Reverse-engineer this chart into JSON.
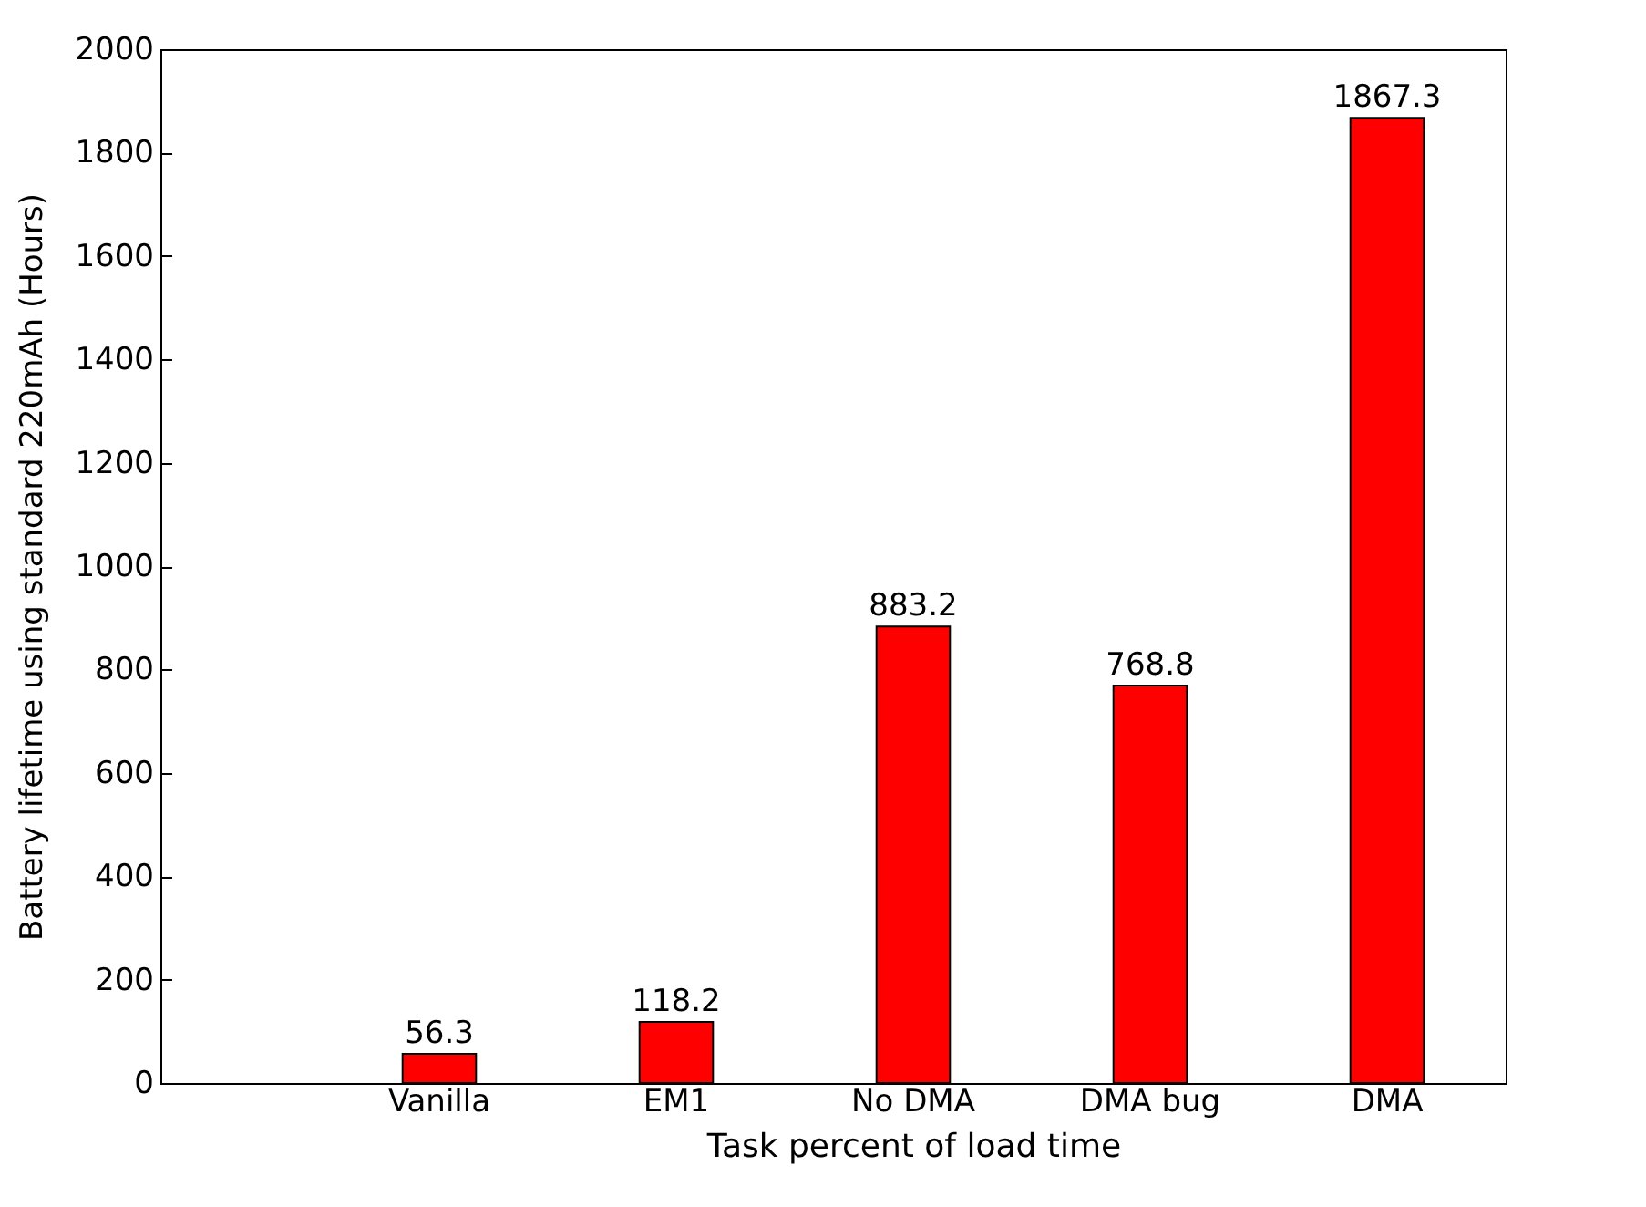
{
  "chart_data": {
    "type": "bar",
    "xlabel": "Task percent of load time",
    "ylabel": "Battery lifetime using standard 220mAh (Hours)",
    "categories": [
      "Vanilla",
      "EM1",
      "No DMA",
      "DMA bug",
      "DMA"
    ],
    "values": [
      56.3,
      118.2,
      883.2,
      768.8,
      1867.3
    ],
    "color": "#ff0000",
    "ylim": [
      0,
      2000
    ],
    "yticks": [
      0,
      200,
      400,
      600,
      800,
      1000,
      1200,
      1400,
      1600,
      1800,
      2000
    ],
    "grid": false,
    "data_labels": true
  }
}
